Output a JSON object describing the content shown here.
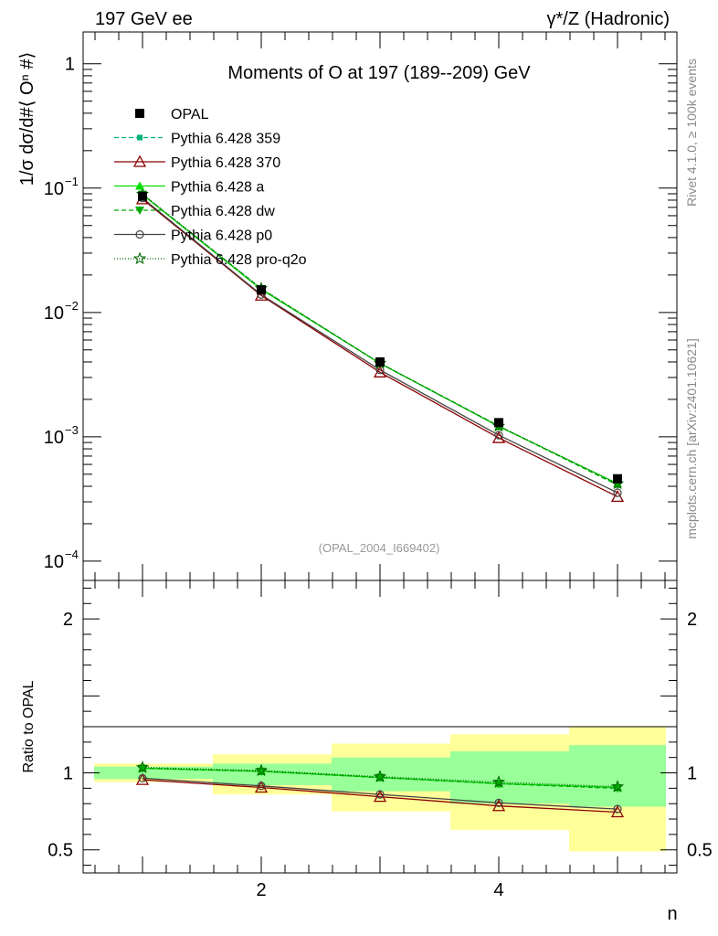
{
  "header": {
    "left": "197 GeV ee",
    "right": "γ*/Z (Hadronic)"
  },
  "side": {
    "rivet": "Rivet 4.1.0, ≥ 100k events",
    "mcplots": "mcplots.cern.ch [arXiv:2401.10621]"
  },
  "chart_data": [
    {
      "type": "line",
      "panel": "main",
      "title": "Moments of O at 197 (189--209) GeV",
      "watermark": "(OPAL_2004_I669402)",
      "xlabel": "n",
      "ylabel": "1/σ  dσ/d#⟨ Oⁿ #⟩",
      "yscale": "log",
      "xlim": [
        0.5,
        5.5
      ],
      "ylim": [
        7e-05,
        1.8
      ],
      "yticks": [
        {
          "value": 1,
          "base": "1",
          "exp": ""
        },
        {
          "value": 0.1,
          "base": "10",
          "exp": "−1"
        },
        {
          "value": 0.01,
          "base": "10",
          "exp": "−2"
        },
        {
          "value": 0.001,
          "base": "10",
          "exp": "−3"
        },
        {
          "value": 0.0001,
          "base": "10",
          "exp": "−4"
        }
      ],
      "x": [
        1,
        2,
        3,
        4,
        5
      ],
      "data": {
        "name": "OPAL",
        "values": [
          0.086,
          0.0152,
          0.004,
          0.0013,
          0.00046
        ]
      },
      "series": [
        {
          "name": "Pythia 6.428 359",
          "color": "#00b377",
          "dash": "5,3",
          "marker": "square-small",
          "values": [
            0.089,
            0.0155,
            0.0039,
            0.00122,
            0.00041
          ]
        },
        {
          "name": "Pythia 6.428 370",
          "color": "#8b0000",
          "dash": "",
          "marker": "triangle-open",
          "values": [
            0.0815,
            0.0137,
            0.0033,
            0.00098,
            0.00033
          ]
        },
        {
          "name": "Pythia 6.428 a",
          "color": "#00dd00",
          "dash": "",
          "marker": "triangle-filled",
          "values": [
            0.0885,
            0.0153,
            0.0039,
            0.00121,
            0.00042
          ]
        },
        {
          "name": "Pythia 6.428 dw",
          "color": "#00aa00",
          "dash": "5,3",
          "marker": "triangle-down",
          "values": [
            0.089,
            0.0155,
            0.0039,
            0.00122,
            0.00041
          ]
        },
        {
          "name": "Pythia 6.428 p0",
          "color": "#444444",
          "dash": "",
          "marker": "circle-open",
          "values": [
            0.083,
            0.0139,
            0.00345,
            0.00103,
            0.000355
          ]
        },
        {
          "name": "Pythia 6.428 pro-q2o",
          "color": "#006600",
          "dash": "1,2",
          "marker": "star",
          "values": [
            0.0895,
            0.0156,
            0.0039,
            0.00122,
            0.00042
          ]
        }
      ]
    },
    {
      "type": "line",
      "panel": "ratio",
      "ylabel": "Ratio to OPAL",
      "xlabel": "n",
      "xlim": [
        0.5,
        5.5
      ],
      "ylim": [
        0.35,
        2.25
      ],
      "yticks": [
        0.5,
        1,
        2
      ],
      "xticks": [
        2,
        4
      ],
      "bands": [
        {
          "x": [
            0.5,
            1.5
          ],
          "yellow": [
            0.94,
            1.06
          ],
          "green": [
            0.96,
            1.04
          ]
        },
        {
          "x": [
            1.5,
            2.5
          ],
          "yellow": [
            0.86,
            1.12
          ],
          "green": [
            0.92,
            1.06
          ]
        },
        {
          "x": [
            2.5,
            3.5
          ],
          "yellow": [
            0.75,
            1.19
          ],
          "green": [
            0.88,
            1.1
          ]
        },
        {
          "x": [
            3.5,
            4.5
          ],
          "yellow": [
            0.63,
            1.25
          ],
          "green": [
            0.8,
            1.14
          ]
        },
        {
          "x": [
            4.5,
            5.5
          ],
          "yellow": [
            0.49,
            1.3
          ],
          "green": [
            0.78,
            1.18
          ]
        }
      ],
      "series": [
        {
          "name": "Pythia 6.428 359",
          "values": [
            1.03,
            1.01,
            0.97,
            0.93,
            0.9
          ]
        },
        {
          "name": "Pythia 6.428 370",
          "values": [
            0.955,
            0.905,
            0.845,
            0.785,
            0.745
          ]
        },
        {
          "name": "Pythia 6.428 a",
          "values": [
            1.03,
            1.01,
            0.97,
            0.93,
            0.905
          ]
        },
        {
          "name": "Pythia 6.428 dw",
          "values": [
            1.03,
            1.01,
            0.97,
            0.93,
            0.9
          ]
        },
        {
          "name": "Pythia 6.428 p0",
          "values": [
            0.965,
            0.915,
            0.86,
            0.805,
            0.765
          ]
        },
        {
          "name": "Pythia 6.428 pro-q2o",
          "values": [
            1.035,
            1.015,
            0.975,
            0.94,
            0.91
          ]
        }
      ]
    }
  ]
}
